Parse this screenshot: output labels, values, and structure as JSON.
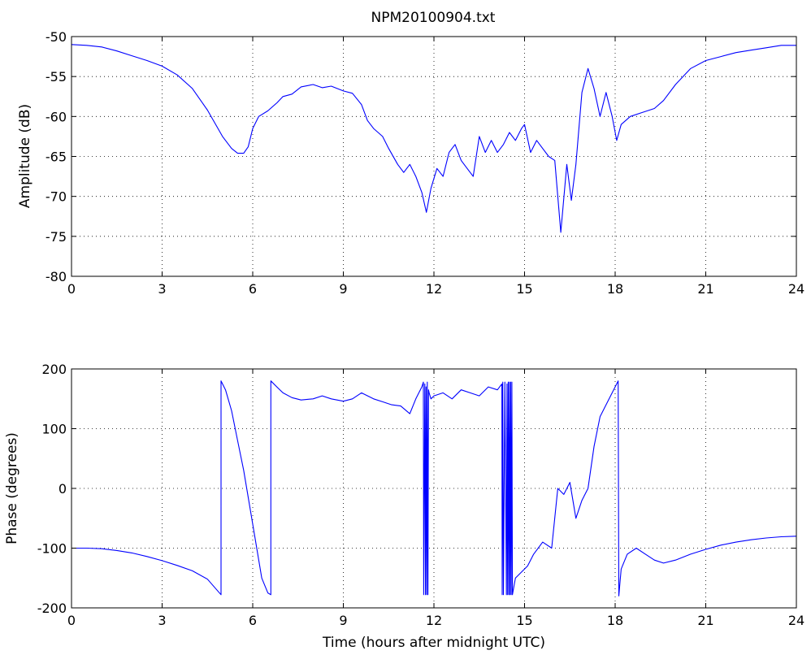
{
  "title": "NPM20100904.txt",
  "chart_data": [
    {
      "type": "line",
      "title": "NPM20100904.txt",
      "xlabel": "",
      "ylabel": "Amplitude (dB)",
      "xlim": [
        0,
        24
      ],
      "ylim": [
        -80,
        -50
      ],
      "xticks": [
        0,
        3,
        6,
        9,
        12,
        15,
        18,
        21,
        24
      ],
      "yticks": [
        -80,
        -75,
        -70,
        -65,
        -60,
        -55,
        -50
      ],
      "grid": true,
      "color": "#0000ff",
      "series": [
        {
          "x": [
            0,
            0.5,
            1,
            1.5,
            2,
            2.5,
            3,
            3.5,
            4,
            4.5,
            5,
            5.3,
            5.5,
            5.7,
            5.85,
            6.0,
            6.2,
            6.5,
            6.8,
            7.0,
            7.3,
            7.6,
            8.0,
            8.3,
            8.6,
            9.0,
            9.3,
            9.6,
            9.8,
            10.0,
            10.3,
            10.5,
            10.8,
            11.0,
            11.2,
            11.4,
            11.6,
            11.75,
            11.9,
            12.1,
            12.3,
            12.5,
            12.7,
            12.9,
            13.1,
            13.3,
            13.5,
            13.7,
            13.9,
            14.1,
            14.3,
            14.5,
            14.7,
            14.9,
            15.0,
            15.2,
            15.4,
            15.6,
            15.8,
            16.0,
            16.1,
            16.2,
            16.4,
            16.55,
            16.7,
            16.9,
            17.1,
            17.3,
            17.5,
            17.7,
            17.9,
            18.05,
            18.2,
            18.5,
            18.9,
            19.3,
            19.6,
            20.0,
            20.5,
            21.0,
            21.5,
            22.0,
            22.5,
            23.0,
            23.5,
            24.0
          ],
          "y": [
            -51.0,
            -51.1,
            -51.3,
            -51.8,
            -52.4,
            -53.0,
            -53.7,
            -54.8,
            -56.5,
            -59.2,
            -62.5,
            -64.0,
            -64.6,
            -64.6,
            -63.8,
            -61.5,
            -60.0,
            -59.3,
            -58.3,
            -57.5,
            -57.2,
            -56.3,
            -56.0,
            -56.4,
            -56.2,
            -56.8,
            -57.1,
            -58.5,
            -60.5,
            -61.5,
            -62.5,
            -64.0,
            -66.0,
            -67.0,
            -66.0,
            -67.5,
            -69.5,
            -72.0,
            -69.0,
            -66.5,
            -67.5,
            -64.5,
            -63.5,
            -65.5,
            -66.5,
            -67.5,
            -62.5,
            -64.5,
            -63.0,
            -64.5,
            -63.5,
            -62.0,
            -63.0,
            -61.5,
            -61.0,
            -64.5,
            -63.0,
            -64.0,
            -65.0,
            -65.5,
            -70.0,
            -74.5,
            -66.0,
            -70.5,
            -66.0,
            -57.0,
            -54.0,
            -56.5,
            -60.0,
            -57.0,
            -60.0,
            -63.0,
            -61.0,
            -60.0,
            -59.5,
            -59.0,
            -58.0,
            -56.0,
            -54.0,
            -53.0,
            -52.5,
            -52.0,
            -51.7,
            -51.4,
            -51.1,
            -51.1
          ]
        }
      ]
    },
    {
      "type": "line",
      "title": "",
      "xlabel": "Time (hours after midnight UTC)",
      "ylabel": "Phase (degrees)",
      "xlim": [
        0,
        24
      ],
      "ylim": [
        -200,
        200
      ],
      "xticks": [
        0,
        3,
        6,
        9,
        12,
        15,
        18,
        21,
        24
      ],
      "yticks": [
        -200,
        -100,
        0,
        100,
        200
      ],
      "grid": true,
      "color": "#0000ff",
      "series": [
        {
          "x": [
            0,
            0.5,
            1,
            1.5,
            2,
            2.5,
            3,
            3.5,
            4,
            4.5,
            4.95,
            4.95,
            5.1,
            5.3,
            5.5,
            5.7,
            5.9,
            6.1,
            6.3,
            6.5,
            6.6,
            6.6,
            6.8,
            7.0,
            7.3,
            7.6,
            8.0,
            8.3,
            8.6,
            9.0,
            9.3,
            9.6,
            10.0,
            10.3,
            10.6,
            10.9,
            11.2,
            11.4,
            11.6,
            11.65,
            11.66,
            11.7,
            11.72,
            11.74,
            11.76,
            11.78,
            11.8,
            11.82,
            11.84,
            11.9,
            12.0,
            12.3,
            12.6,
            12.9,
            13.2,
            13.5,
            13.8,
            14.1,
            14.25,
            14.26,
            14.28,
            14.3,
            14.35,
            14.4,
            14.42,
            14.44,
            14.46,
            14.48,
            14.5,
            14.52,
            14.54,
            14.56,
            14.58,
            14.6,
            14.7,
            14.9,
            15.1,
            15.3,
            15.6,
            15.9,
            16.1,
            16.3,
            16.5,
            16.7,
            16.9,
            17.1,
            17.3,
            17.5,
            17.7,
            17.9,
            18.1,
            18.12,
            18.2,
            18.4,
            18.7,
            19.0,
            19.3,
            19.6,
            20.0,
            20.5,
            21.0,
            21.5,
            22.0,
            22.5,
            23.0,
            23.5,
            24.0
          ],
          "y": [
            -100,
            -100,
            -101,
            -104,
            -108,
            -114,
            -121,
            -129,
            -138,
            -152,
            -178,
            180,
            165,
            130,
            80,
            30,
            -30,
            -90,
            -150,
            -175,
            -178,
            180,
            170,
            160,
            152,
            148,
            150,
            155,
            150,
            146,
            150,
            160,
            150,
            145,
            140,
            138,
            125,
            150,
            170,
            178,
            -178,
            175,
            -178,
            170,
            -178,
            178,
            -178,
            165,
            160,
            150,
            155,
            160,
            150,
            165,
            160,
            155,
            170,
            165,
            175,
            -178,
            178,
            -178,
            178,
            -178,
            175,
            -178,
            178,
            -178,
            178,
            -178,
            178,
            -178,
            178,
            -178,
            -150,
            -140,
            -130,
            -110,
            -90,
            -100,
            0,
            -10,
            10,
            -50,
            -20,
            0,
            70,
            120,
            140,
            160,
            180,
            -180,
            -135,
            -110,
            -100,
            -110,
            -120,
            -125,
            -120,
            -110,
            -102,
            -95,
            -90,
            -86,
            -83,
            -81,
            -80
          ]
        }
      ]
    }
  ]
}
